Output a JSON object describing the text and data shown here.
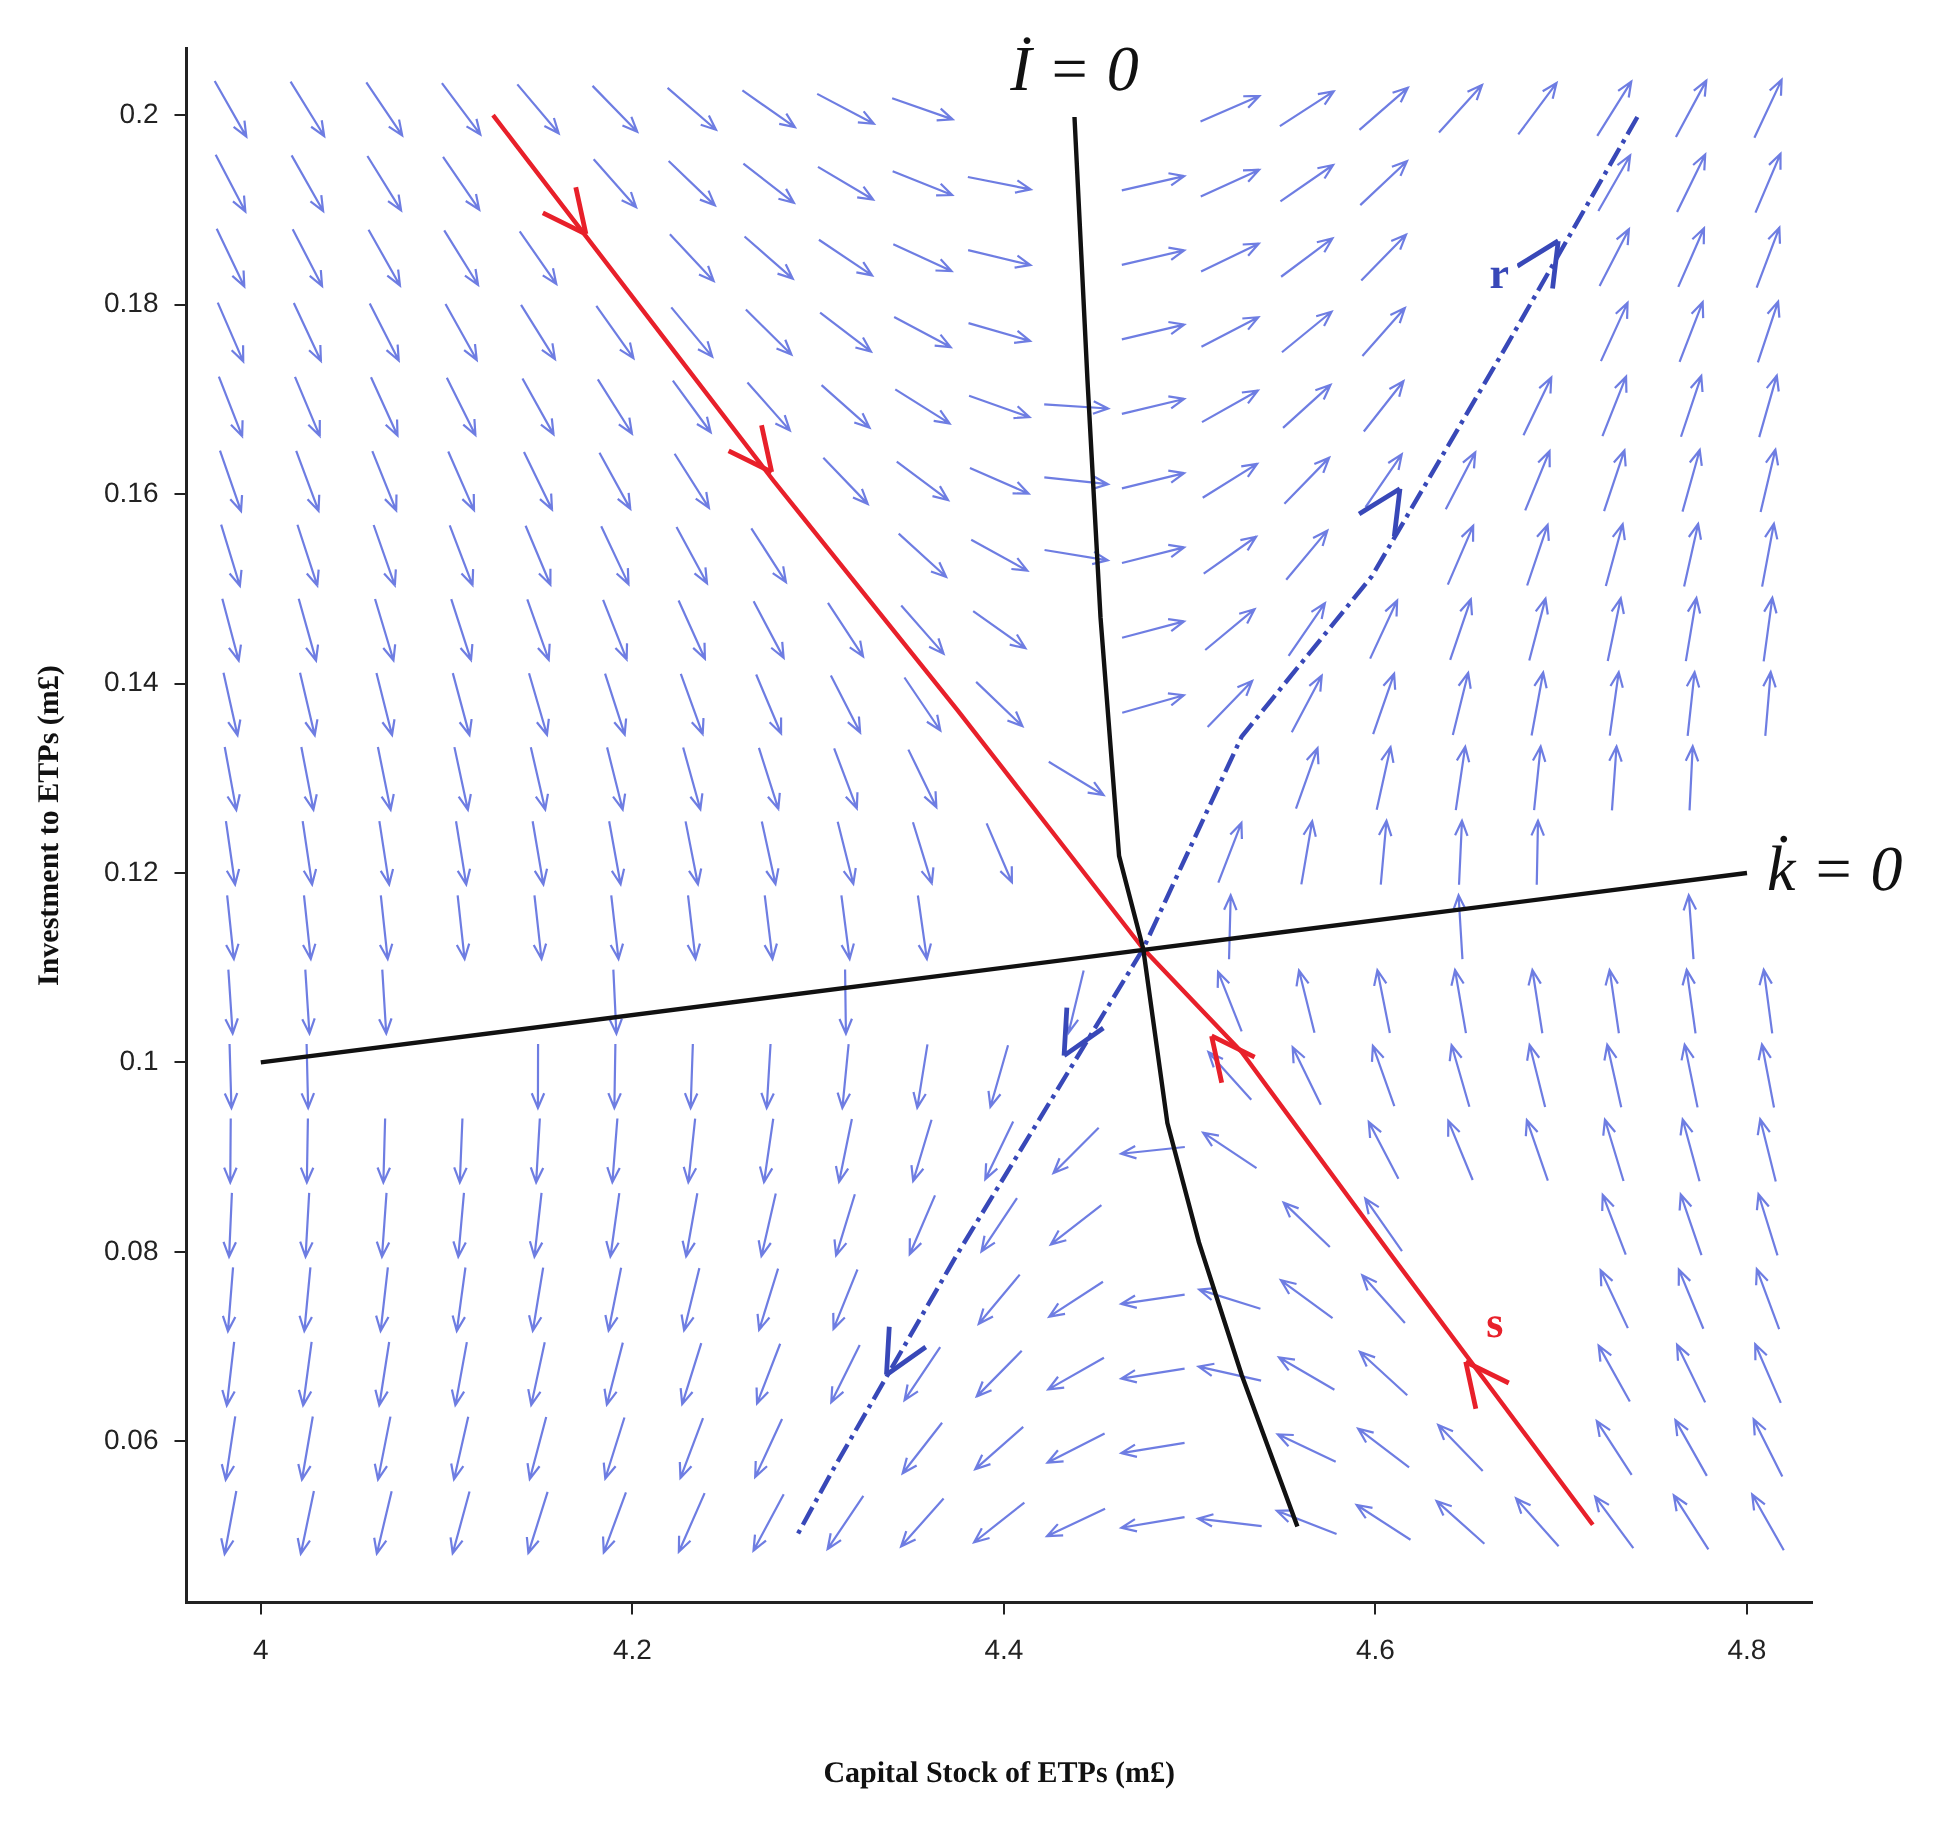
{
  "chart_data": {
    "type": "line",
    "xlabel": "Capital Stock of ETPs (m£)",
    "ylabel": "Investment to ETPs (m£)",
    "xlim": [
      3.96,
      4.835
    ],
    "xticks": [
      4,
      4.2,
      4.4,
      4.6,
      4.8
    ],
    "ylim": [
      0.043,
      0.207
    ],
    "yticks": [
      0.06,
      0.08,
      0.1,
      0.12,
      0.14,
      0.16,
      0.18,
      0.2
    ],
    "grid": false,
    "legend": false,
    "marker": "none",
    "series": [
      {
        "name": "k̇ = 0",
        "color": "#111111",
        "x": [
          4.0,
          4.8
        ],
        "values": [
          0.1,
          0.12
        ]
      },
      {
        "name": "İ = 0",
        "color": "#111111",
        "x": [
          4.438,
          4.445,
          4.452,
          4.462,
          4.475,
          4.488,
          4.505,
          4.528,
          4.558
        ],
        "values": [
          0.1998,
          0.172,
          0.147,
          0.1218,
          0.112,
          0.0936,
          0.081,
          0.067,
          0.051
        ]
      },
      {
        "name": "s",
        "color": "#e8202a",
        "x": [
          4.125,
          4.276,
          4.375,
          4.475,
          4.528,
          4.608,
          4.717
        ],
        "values": [
          0.2,
          0.1614,
          0.1372,
          0.112,
          0.1011,
          0.0798,
          0.0512
        ]
      },
      {
        "name": "r",
        "color": "#3848b8",
        "line_style": "dashed",
        "x": [
          4.741,
          4.671,
          4.598,
          4.528,
          4.475,
          4.375,
          4.308,
          4.289
        ],
        "values": [
          0.1998,
          0.1758,
          0.1513,
          0.1344,
          0.112,
          0.0798,
          0.057,
          0.0502
        ]
      }
    ]
  }
}
